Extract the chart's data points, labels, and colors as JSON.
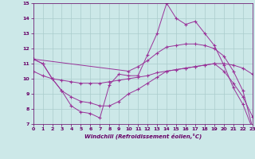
{
  "xlabel": "Windchill (Refroidissement éolien,°C)",
  "background_color": "#cce8e8",
  "grid_color": "#aacccc",
  "line_color": "#993399",
  "xlim": [
    0,
    23
  ],
  "ylim": [
    7,
    15
  ],
  "xticks": [
    0,
    1,
    2,
    3,
    4,
    5,
    6,
    7,
    8,
    9,
    10,
    11,
    12,
    13,
    14,
    15,
    16,
    17,
    18,
    19,
    20,
    21,
    22,
    23
  ],
  "yticks": [
    7,
    8,
    9,
    10,
    11,
    12,
    13,
    14,
    15
  ],
  "series": {
    "line1_x": [
      0,
      1,
      2,
      3,
      4,
      5,
      6,
      7,
      8,
      9,
      10,
      11,
      12,
      13,
      14,
      15,
      16,
      17,
      18,
      19,
      20,
      21,
      22,
      23
    ],
    "line1_y": [
      11.3,
      11.0,
      10.0,
      9.2,
      8.2,
      7.8,
      7.7,
      7.4,
      9.6,
      10.3,
      10.2,
      10.2,
      11.6,
      13.0,
      15.0,
      14.0,
      13.6,
      13.8,
      13.0,
      12.2,
      10.9,
      9.4,
      8.3,
      6.7
    ],
    "line2_x": [
      0,
      1,
      2,
      3,
      4,
      5,
      6,
      7,
      8,
      9,
      10,
      11,
      12,
      13,
      14,
      15,
      16,
      17,
      18,
      19,
      20,
      21,
      22,
      23
    ],
    "line2_y": [
      11.3,
      11.0,
      10.0,
      9.2,
      8.8,
      8.5,
      8.4,
      8.2,
      8.2,
      8.5,
      9.0,
      9.3,
      9.7,
      10.1,
      10.5,
      10.6,
      10.7,
      10.8,
      10.9,
      11.0,
      10.5,
      9.7,
      8.8,
      7.5
    ],
    "line3_x": [
      0,
      1,
      2,
      3,
      4,
      5,
      6,
      7,
      8,
      9,
      10,
      11,
      12,
      13,
      14,
      15,
      16,
      17,
      18,
      19,
      20,
      21,
      22,
      23
    ],
    "line3_y": [
      10.5,
      10.2,
      10.0,
      9.9,
      9.8,
      9.7,
      9.7,
      9.7,
      9.8,
      9.9,
      10.0,
      10.1,
      10.2,
      10.4,
      10.5,
      10.6,
      10.7,
      10.8,
      10.9,
      11.0,
      11.0,
      10.9,
      10.7,
      10.3
    ],
    "line4_x": [
      0,
      10,
      11,
      12,
      13,
      14,
      15,
      16,
      17,
      18,
      19,
      20,
      21,
      22,
      23
    ],
    "line4_y": [
      11.3,
      10.5,
      10.8,
      11.2,
      11.7,
      12.1,
      12.2,
      12.3,
      12.3,
      12.2,
      12.0,
      11.5,
      10.5,
      9.2,
      6.8
    ]
  }
}
